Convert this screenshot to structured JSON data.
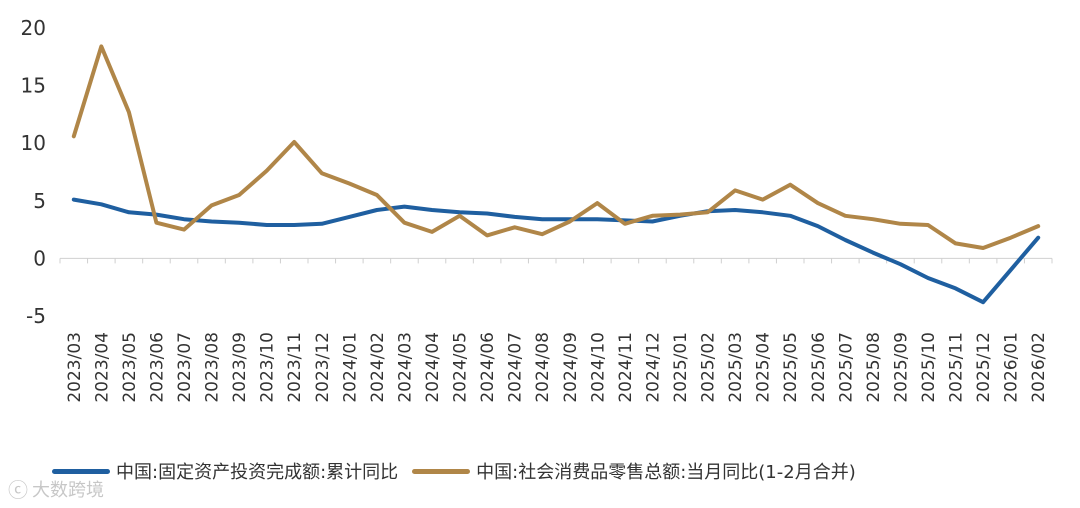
{
  "chart_data": {
    "type": "line",
    "title": "",
    "xlabel": "",
    "ylabel": "",
    "ylim": [
      -5,
      20
    ],
    "yticks": [
      -5,
      0,
      5,
      10,
      15,
      20
    ],
    "grid": false,
    "legend_position": "bottom",
    "categories": [
      "2023/03",
      "2023/04",
      "2023/05",
      "2023/06",
      "2023/07",
      "2023/08",
      "2023/09",
      "2023/10",
      "2023/11",
      "2023/12",
      "2024/01",
      "2024/02",
      "2024/03",
      "2024/04",
      "2024/05",
      "2024/06",
      "2024/07",
      "2024/08",
      "2024/09",
      "2024/10",
      "2024/11",
      "2024/12",
      "2025/01",
      "2025/02",
      "2025/03",
      "2025/04",
      "2025/05",
      "2025/06",
      "2025/07",
      "2025/08",
      "2025/09",
      "2025/10",
      "2025/11",
      "2025/12",
      "2026/01",
      "2026/02"
    ],
    "series": [
      {
        "name": "中国:固定资产投资完成额:累计同比",
        "color": "#1f5fa0",
        "values": [
          5.1,
          4.7,
          4.0,
          3.8,
          3.4,
          3.2,
          3.1,
          2.9,
          2.9,
          3.0,
          3.6,
          4.2,
          4.5,
          4.2,
          4.0,
          3.9,
          3.6,
          3.4,
          3.4,
          3.4,
          3.3,
          3.2,
          3.7,
          4.1,
          4.2,
          4.0,
          3.7,
          2.8,
          1.6,
          0.5,
          -0.5,
          -1.7,
          -2.6,
          -3.8,
          -1.0,
          1.8
        ]
      },
      {
        "name": "中国:社会消费品零售总额:当月同比(1-2月合并)",
        "color": "#b08648",
        "values": [
          10.6,
          18.4,
          12.7,
          3.1,
          2.5,
          4.6,
          5.5,
          7.6,
          10.1,
          7.4,
          6.5,
          5.5,
          3.1,
          2.3,
          3.7,
          2.0,
          2.7,
          2.1,
          3.2,
          4.8,
          3.0,
          3.7,
          3.8,
          4.0,
          5.9,
          5.1,
          6.4,
          4.8,
          3.7,
          3.4,
          3.0,
          2.9,
          1.3,
          0.9,
          1.8,
          2.8
        ]
      }
    ]
  },
  "watermark": {
    "mark": "ⓒ",
    "text": "大数跨境"
  }
}
